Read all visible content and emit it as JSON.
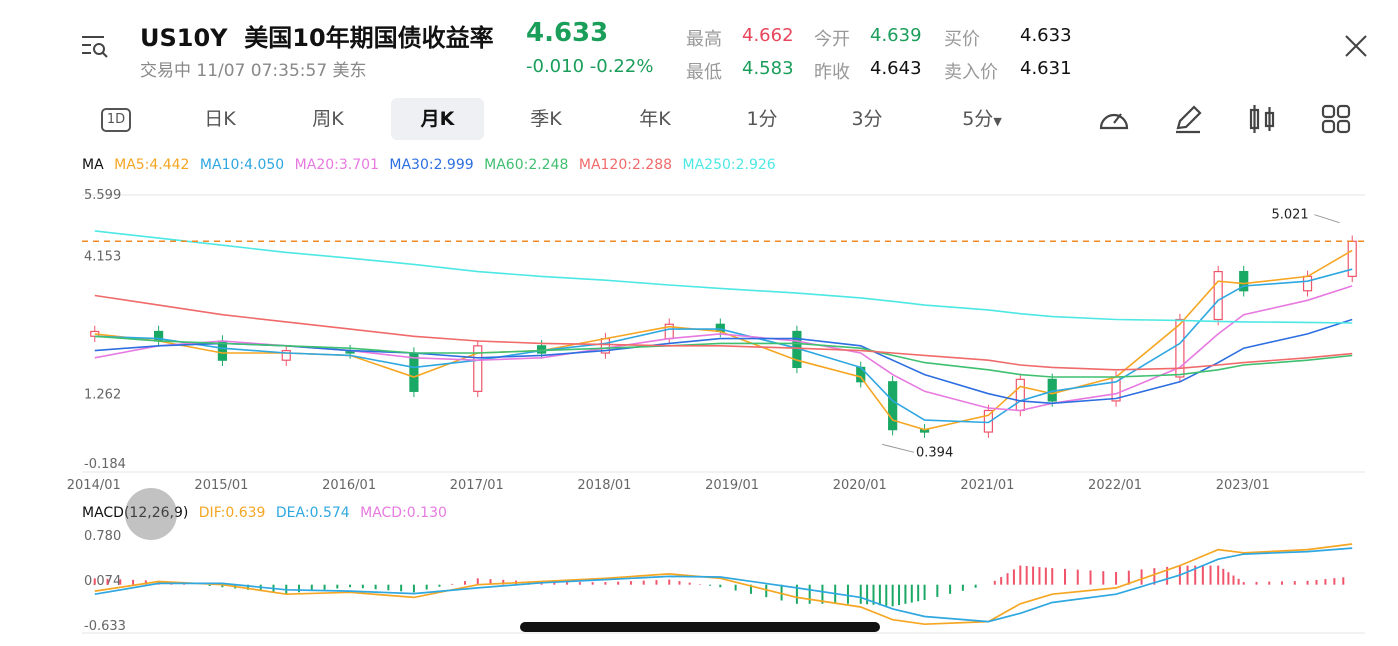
{
  "header": {
    "symbol": "US10Y",
    "name": "美国10年期国债收益率",
    "status": "交易中 11/07 07:35:57 美东",
    "price": "4.633",
    "change": "-0.010",
    "change_pct": "-0.22%",
    "quote": {
      "high_label": "最高",
      "high": "4.662",
      "open_label": "今开",
      "open": "4.639",
      "bid_label": "买价",
      "bid": "4.633",
      "low_label": "最低",
      "low": "4.583",
      "prev_close_label": "昨收",
      "prev_close": "4.643",
      "ask_label": "卖入价",
      "ask": "4.631"
    }
  },
  "tabs": {
    "d1": "1D",
    "items": [
      "日K",
      "周K",
      "月K",
      "季K",
      "年K",
      "1分",
      "3分",
      "5分"
    ],
    "active": "月K"
  },
  "toolbar_icons": [
    "speedometer-icon",
    "pencil-icon",
    "candle-style-icon",
    "grid-icon"
  ],
  "ma_legend": {
    "title": "MA",
    "items": [
      {
        "label": "MA5:4.442",
        "color": "#f5a623"
      },
      {
        "label": "MA10:4.050",
        "color": "#2fa7e0"
      },
      {
        "label": "MA20:3.701",
        "color": "#e77ae0"
      },
      {
        "label": "MA30:2.999",
        "color": "#2d6fe0"
      },
      {
        "label": "MA60:2.248",
        "color": "#3fbf70"
      },
      {
        "label": "MA120:2.288",
        "color": "#f06a6a"
      },
      {
        "label": "MA250:2.926",
        "color": "#4de8e4"
      }
    ]
  },
  "macd_legend": {
    "title": "MACD(12,26,9)",
    "items": [
      {
        "label": "DIF:0.639",
        "color": "#f5a623"
      },
      {
        "label": "DEA:0.574",
        "color": "#2fa7e0"
      },
      {
        "label": "MACD:0.130",
        "color": "#e77ae0"
      }
    ]
  },
  "chart_data": [
    {
      "type": "line",
      "title": "",
      "y_ticks": [
        "5.599",
        "4.153",
        "1.262",
        "-0.184"
      ],
      "ylim": [
        -0.184,
        5.599
      ],
      "x_ticks": [
        "2014/01",
        "2015/01",
        "2016/01",
        "2017/01",
        "2018/01",
        "2019/01",
        "2020/01",
        "2021/01",
        "2022/01",
        "2023/01"
      ],
      "annotations": [
        {
          "label": "5.021",
          "x": "2023/10",
          "y": 5.021
        },
        {
          "label": "0.394",
          "x": "2020/03",
          "y": 0.394
        }
      ],
      "current_price_line": 4.633,
      "x": [
        2014.0,
        2014.5,
        2015.0,
        2015.5,
        2016.0,
        2016.5,
        2017.0,
        2017.5,
        2018.0,
        2018.5,
        2018.9,
        2019.5,
        2020.0,
        2020.25,
        2020.5,
        2021.0,
        2021.25,
        2021.5,
        2022.0,
        2022.5,
        2022.8,
        2023.0,
        2023.5,
        2023.85
      ],
      "close": [
        2.75,
        2.55,
        2.15,
        2.35,
        2.3,
        1.5,
        2.45,
        2.3,
        2.6,
        2.9,
        2.75,
        2.0,
        1.7,
        0.7,
        0.65,
        1.1,
        1.75,
        1.3,
        1.8,
        3.0,
        4.0,
        3.6,
        3.9,
        4.633
      ],
      "series": [
        {
          "name": "MA5",
          "values": [
            2.7,
            2.55,
            2.3,
            2.3,
            2.25,
            1.8,
            2.3,
            2.35,
            2.6,
            2.85,
            2.75,
            2.15,
            1.8,
            0.9,
            0.7,
            1.0,
            1.6,
            1.45,
            1.8,
            2.9,
            3.8,
            3.75,
            3.9,
            4.442
          ]
        },
        {
          "name": "MA10",
          "values": [
            2.65,
            2.6,
            2.4,
            2.3,
            2.25,
            2.0,
            2.15,
            2.35,
            2.5,
            2.8,
            2.8,
            2.4,
            2.0,
            1.3,
            0.9,
            0.85,
            1.3,
            1.5,
            1.7,
            2.5,
            3.4,
            3.7,
            3.8,
            4.05
          ]
        },
        {
          "name": "MA20",
          "values": [
            2.2,
            2.45,
            2.55,
            2.45,
            2.35,
            2.2,
            2.15,
            2.2,
            2.4,
            2.6,
            2.7,
            2.55,
            2.3,
            1.85,
            1.5,
            1.15,
            1.1,
            1.25,
            1.45,
            2.0,
            2.7,
            3.1,
            3.4,
            3.701
          ]
        },
        {
          "name": "MA30",
          "values": [
            2.35,
            2.45,
            2.5,
            2.45,
            2.35,
            2.3,
            2.2,
            2.25,
            2.35,
            2.5,
            2.6,
            2.6,
            2.45,
            2.15,
            1.85,
            1.45,
            1.3,
            1.25,
            1.35,
            1.7,
            2.1,
            2.4,
            2.7,
            2.999
          ]
        },
        {
          "name": "MA60",
          "values": [
            2.65,
            2.55,
            2.5,
            2.45,
            2.4,
            2.3,
            2.3,
            2.35,
            2.4,
            2.45,
            2.5,
            2.5,
            2.4,
            2.25,
            2.1,
            1.95,
            1.85,
            1.8,
            1.8,
            1.85,
            1.95,
            2.05,
            2.15,
            2.248
          ]
        },
        {
          "name": "MA120",
          "values": [
            3.5,
            3.3,
            3.1,
            2.95,
            2.8,
            2.65,
            2.55,
            2.5,
            2.48,
            2.45,
            2.45,
            2.4,
            2.35,
            2.3,
            2.25,
            2.15,
            2.05,
            2.0,
            1.95,
            1.98,
            2.05,
            2.1,
            2.2,
            2.288
          ]
        },
        {
          "name": "MA250",
          "values": [
            4.85,
            4.7,
            4.55,
            4.4,
            4.28,
            4.15,
            4.0,
            3.9,
            3.82,
            3.72,
            3.65,
            3.55,
            3.45,
            3.38,
            3.3,
            3.2,
            3.12,
            3.06,
            3.0,
            2.98,
            2.96,
            2.95,
            2.94,
            2.926
          ]
        }
      ]
    },
    {
      "type": "line",
      "title": "",
      "y_ticks": [
        "0.780",
        "0.074",
        "-0.633"
      ],
      "ylim": [
        -0.633,
        0.78
      ],
      "x": [
        2014.0,
        2014.5,
        2015.0,
        2015.5,
        2016.0,
        2016.5,
        2017.0,
        2017.5,
        2018.0,
        2018.5,
        2018.9,
        2019.5,
        2020.0,
        2020.25,
        2020.5,
        2021.0,
        2021.25,
        2021.5,
        2022.0,
        2022.5,
        2022.8,
        2023.0,
        2023.5,
        2023.85
      ],
      "series": [
        {
          "name": "DIF",
          "values": [
            -0.1,
            0.05,
            0.0,
            -0.15,
            -0.12,
            -0.2,
            0.0,
            0.05,
            0.1,
            0.17,
            0.1,
            -0.2,
            -0.35,
            -0.55,
            -0.62,
            -0.58,
            -0.3,
            -0.15,
            -0.05,
            0.3,
            0.55,
            0.5,
            0.55,
            0.639
          ]
        },
        {
          "name": "DEA",
          "values": [
            -0.15,
            0.02,
            0.02,
            -0.08,
            -0.1,
            -0.14,
            -0.05,
            0.03,
            0.08,
            0.13,
            0.12,
            -0.05,
            -0.2,
            -0.38,
            -0.5,
            -0.58,
            -0.45,
            -0.28,
            -0.15,
            0.15,
            0.4,
            0.48,
            0.52,
            0.574
          ]
        },
        {
          "name": "MACD",
          "values": [
            0.1,
            0.06,
            -0.04,
            -0.14,
            -0.04,
            -0.12,
            0.1,
            0.04,
            0.04,
            0.08,
            -0.04,
            -0.3,
            -0.3,
            -0.34,
            -0.24,
            0.0,
            0.3,
            0.26,
            0.2,
            0.3,
            0.3,
            0.04,
            0.06,
            0.13
          ]
        }
      ]
    }
  ]
}
